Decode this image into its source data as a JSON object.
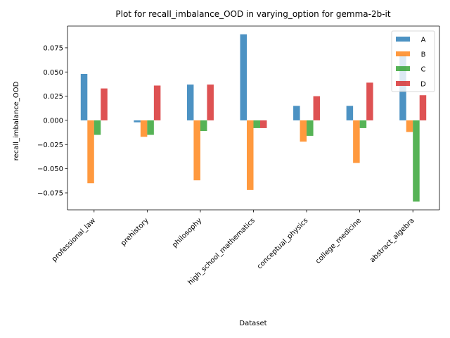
{
  "chart_data": {
    "type": "bar",
    "title": "Plot for recall_imbalance_OOD in varying_option for gemma-2b-it",
    "xlabel": "Dataset",
    "ylabel": "recall_imbalance_OOD",
    "categories": [
      "professional_law",
      "prehistory",
      "philosophy",
      "high_school_mathematics",
      "conceptual_physics",
      "college_medicine",
      "abstract_algebra"
    ],
    "series": [
      {
        "name": "A",
        "color": "#1f77b4",
        "values": [
          0.048,
          -0.002,
          0.037,
          0.089,
          0.015,
          0.015,
          0.068
        ]
      },
      {
        "name": "B",
        "color": "#ff7f0e",
        "values": [
          -0.065,
          -0.017,
          -0.062,
          -0.072,
          -0.022,
          -0.044,
          -0.012
        ]
      },
      {
        "name": "C",
        "color": "#2ca02c",
        "values": [
          -0.015,
          -0.015,
          -0.011,
          -0.008,
          -0.016,
          -0.008,
          -0.084
        ]
      },
      {
        "name": "D",
        "color": "#d62728",
        "values": [
          0.033,
          0.036,
          0.037,
          -0.008,
          0.025,
          0.039,
          0.026
        ]
      }
    ],
    "yticks": [
      -0.075,
      -0.05,
      -0.025,
      0.0,
      0.025,
      0.05,
      0.075
    ],
    "ytick_labels": [
      "−0.075",
      "−0.050",
      "−0.025",
      "0.000",
      "0.025",
      "0.050",
      "0.075"
    ],
    "ylim": [
      -0.0925,
      0.0975
    ],
    "legend_position": "top-right",
    "grid": false
  }
}
